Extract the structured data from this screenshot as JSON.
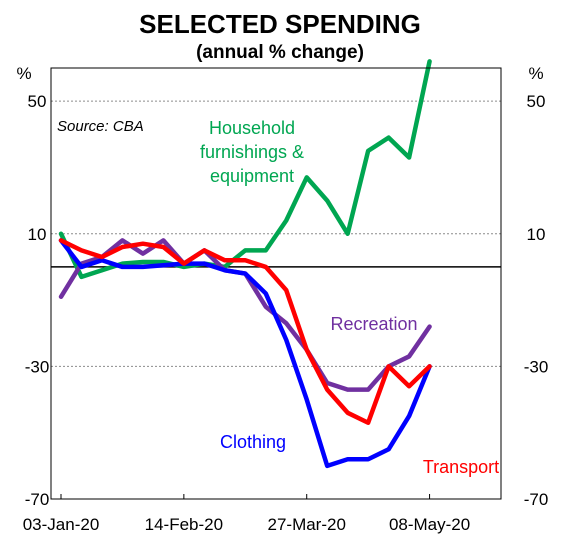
{
  "chart_data": {
    "type": "line",
    "title": "SELECTED SPENDING",
    "subtitle": "(annual % change)",
    "source": "Source: CBA",
    "ylabel_left": "%",
    "ylabel_right": "%",
    "ylim": [
      -70,
      60
    ],
    "yticks": [
      50,
      10,
      -30,
      -70
    ],
    "xlim": [
      "2020-01-03",
      "2020-05-29"
    ],
    "xticks": [
      "03-Jan-20",
      "14-Feb-20",
      "27-Mar-20",
      "08-May-20"
    ],
    "x": [
      "2020-01-03",
      "2020-01-10",
      "2020-01-17",
      "2020-01-24",
      "2020-01-31",
      "2020-02-07",
      "2020-02-14",
      "2020-02-21",
      "2020-02-28",
      "2020-03-06",
      "2020-03-13",
      "2020-03-20",
      "2020-03-27",
      "2020-04-03",
      "2020-04-10",
      "2020-04-17",
      "2020-04-24",
      "2020-05-01",
      "2020-05-08",
      "2020-05-15"
    ],
    "grid": true,
    "series": [
      {
        "name": "Household furnishings & equipment",
        "color": "#00a651",
        "values": [
          10,
          -3,
          -1,
          1,
          1.5,
          1.5,
          0,
          1,
          0,
          5,
          5,
          14,
          27,
          20,
          10,
          35,
          39,
          33,
          62,
          null
        ]
      },
      {
        "name": "Recreation",
        "color": "#7030a0",
        "values": [
          -9,
          1,
          3,
          8,
          4,
          8,
          1,
          5,
          -1,
          -2,
          -12,
          -17,
          -25,
          -35,
          -37,
          -37,
          -30,
          -27,
          -18,
          null
        ]
      },
      {
        "name": "Clothing",
        "color": "#0000ff",
        "values": [
          8,
          0,
          2,
          0,
          0,
          0.5,
          1,
          1,
          -1,
          -2,
          -8,
          -22,
          -40,
          -60,
          -58,
          -58,
          -55,
          -45,
          -30,
          null
        ]
      },
      {
        "name": "Transport",
        "color": "#ff0000",
        "values": [
          8,
          5,
          3,
          6,
          7,
          6,
          1,
          5,
          2,
          2,
          0,
          -7,
          -25,
          -37,
          -44,
          -47,
          -30,
          -36,
          -30,
          null
        ]
      }
    ],
    "series_labels": [
      {
        "lines": [
          "Household",
          "furnishings &",
          "equipment"
        ],
        "color": "#00a651"
      },
      {
        "lines": [
          "Recreation"
        ],
        "color": "#7030a0"
      },
      {
        "lines": [
          "Clothing"
        ],
        "color": "#0000ff"
      },
      {
        "lines": [
          "Transport"
        ],
        "color": "#ff0000"
      }
    ]
  }
}
